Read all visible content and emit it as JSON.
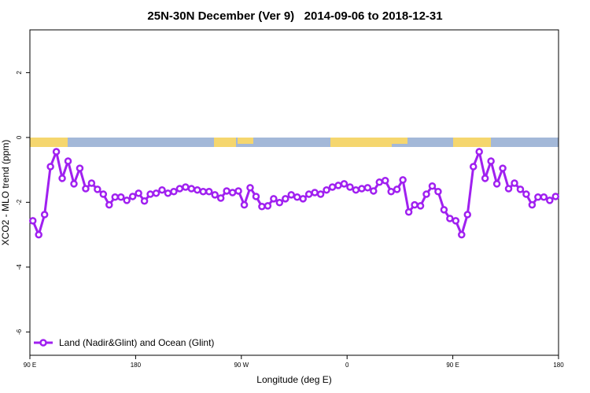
{
  "chart_data": {
    "type": "line",
    "title": "25N-30N December (Ver 9)   2014-09-06 to 2018-12-31",
    "x_label": "Longitude (deg E)",
    "y_label": "XCO2 - MLO trend (ppm)",
    "xlim": [
      90,
      540
    ],
    "xticks": [
      {
        "value": 90,
        "label": "90 E"
      },
      180,
      {
        "value": 270,
        "label": "90 W"
      },
      {
        "value": 360,
        "label": "0"
      },
      {
        "value": 450,
        "label": "90 E"
      },
      {
        "value": 540,
        "label": "180"
      }
    ],
    "ylim": [
      -6.72,
      3.32
    ],
    "yticks": [
      -6,
      -4,
      -2,
      0,
      2
    ],
    "legend": "bottom-left",
    "x": [
      92.5,
      97.5,
      102.5,
      107.5,
      112.5,
      117.5,
      122.5,
      127.5,
      132.5,
      137.5,
      142.5,
      147.5,
      152.5,
      157.5,
      162.5,
      167.5,
      172.5,
      177.5,
      182.5,
      187.5,
      192.5,
      197.5,
      202.5,
      207.5,
      212.5,
      217.5,
      222.5,
      227.5,
      232.5,
      237.5,
      242.5,
      247.5,
      252.5,
      257.5,
      262.5,
      267.5,
      272.5,
      277.5,
      282.5,
      287.5,
      292.5,
      297.5,
      302.5,
      307.5,
      312.5,
      317.5,
      322.5,
      327.5,
      332.5,
      337.5,
      342.5,
      347.5,
      352.5,
      357.5,
      362.5,
      367.5,
      372.5,
      377.5,
      382.5,
      387.5,
      392.5,
      397.5,
      402.5,
      407.5,
      412.5,
      417.5,
      422.5,
      427.5,
      432.5,
      437.5,
      442.5,
      447.5,
      452.5,
      457.5,
      462.5,
      467.5,
      472.5,
      477.5,
      482.5,
      487.5,
      492.5,
      497.5,
      502.5,
      507.5,
      512.5,
      517.5,
      522.5,
      527.5,
      532.5,
      537.5
    ],
    "series": [
      {
        "name": "Land (Nadir&Glint) and Ocean (Glint)",
        "color": "#a020f0",
        "values": [
          -2.57,
          -3.0,
          -2.38,
          -0.9,
          -0.44,
          -1.26,
          -0.73,
          -1.43,
          -0.95,
          -1.58,
          -1.41,
          -1.6,
          -1.75,
          -2.08,
          -1.84,
          -1.84,
          -1.94,
          -1.82,
          -1.72,
          -1.96,
          -1.75,
          -1.72,
          -1.62,
          -1.72,
          -1.67,
          -1.58,
          -1.53,
          -1.58,
          -1.62,
          -1.67,
          -1.67,
          -1.77,
          -1.87,
          -1.65,
          -1.7,
          -1.65,
          -2.08,
          -1.55,
          -1.82,
          -2.13,
          -2.11,
          -1.89,
          -2.01,
          -1.89,
          -1.77,
          -1.84,
          -1.89,
          -1.75,
          -1.7,
          -1.75,
          -1.62,
          -1.53,
          -1.48,
          -1.43,
          -1.53,
          -1.62,
          -1.58,
          -1.55,
          -1.65,
          -1.38,
          -1.33,
          -1.67,
          -1.6,
          -1.31,
          -2.3,
          -2.08,
          -2.11,
          -1.75,
          -1.5,
          -1.67,
          -2.23,
          -2.5,
          -2.57,
          -3.0,
          -2.38,
          -0.9,
          -0.44,
          -1.26,
          -0.73,
          -1.43,
          -0.95,
          -1.58,
          -1.41,
          -1.6,
          -1.75,
          -2.08,
          -1.84,
          -1.84,
          -1.94,
          -1.82
        ]
      }
    ]
  }
}
